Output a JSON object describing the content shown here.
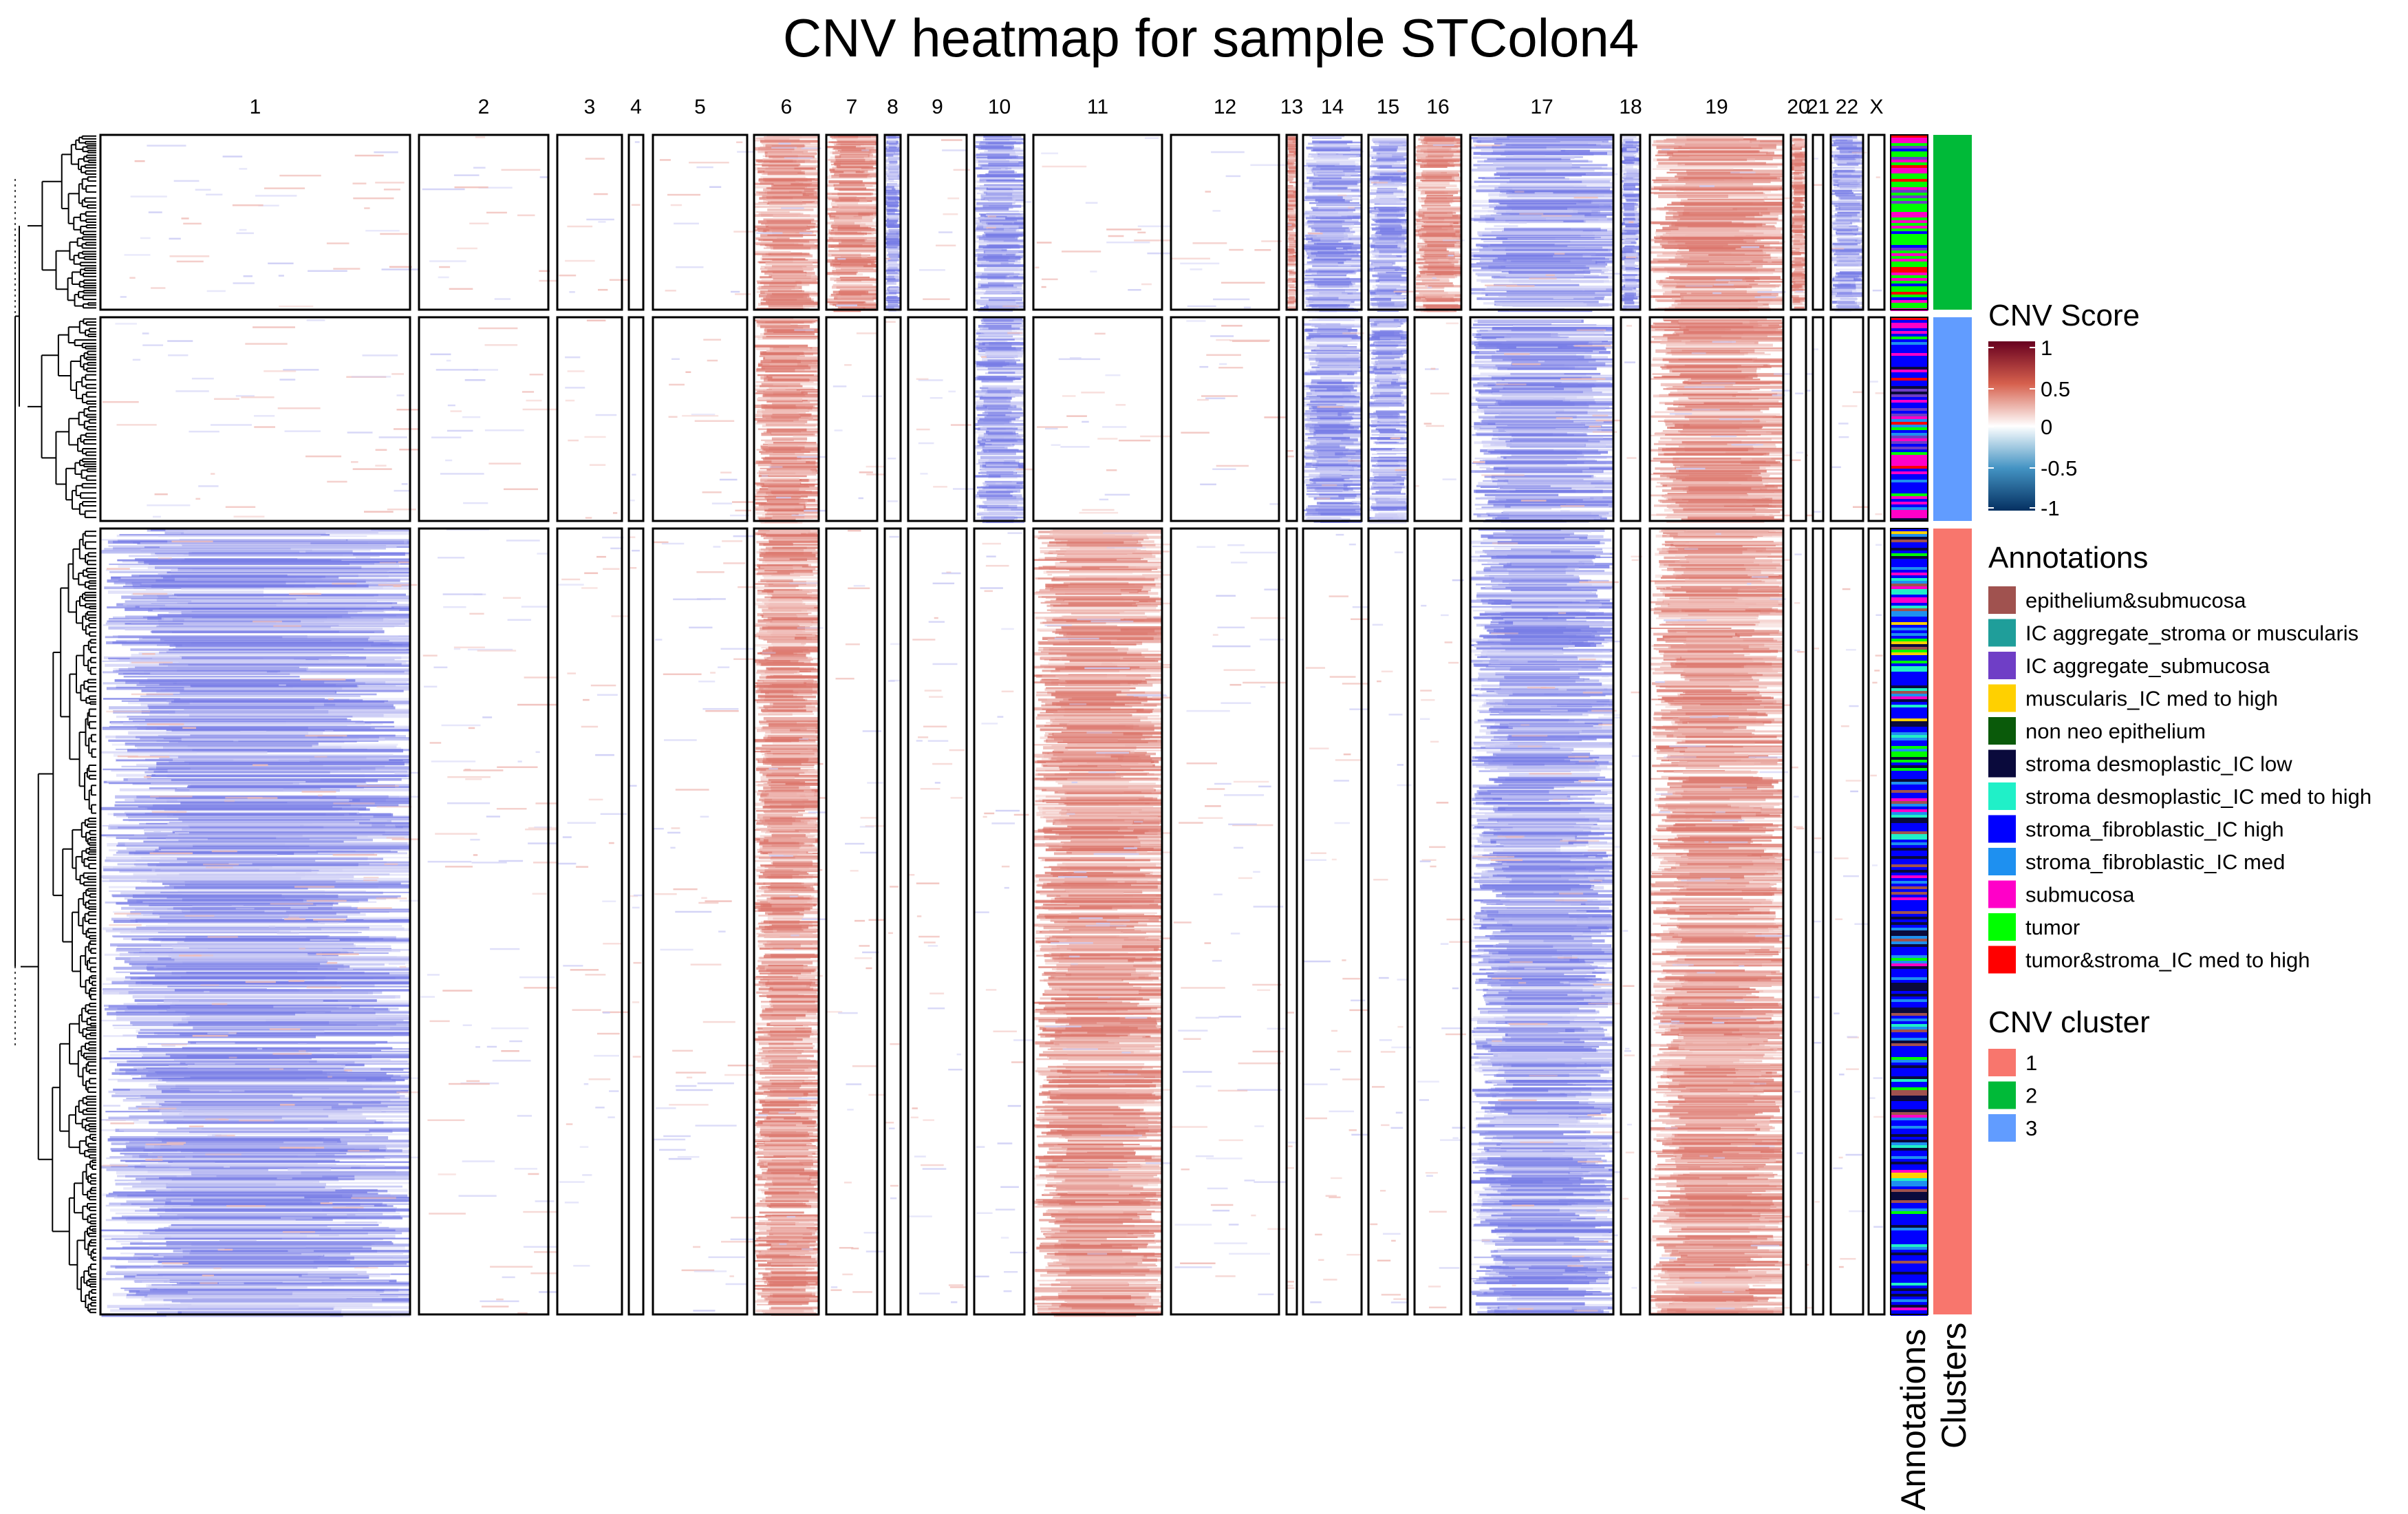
{
  "chart_data": {
    "type": "heatmap",
    "title": "CNV heatmap for sample STColon4",
    "chromosomes": [
      {
        "name": "1"
      },
      {
        "name": "2"
      },
      {
        "name": "3"
      },
      {
        "name": "4"
      },
      {
        "name": "5"
      },
      {
        "name": "6"
      },
      {
        "name": "7"
      },
      {
        "name": "8"
      },
      {
        "name": "9"
      },
      {
        "name": "10"
      },
      {
        "name": "11"
      },
      {
        "name": "12"
      },
      {
        "name": "13"
      },
      {
        "name": "14"
      },
      {
        "name": "15"
      },
      {
        "name": "16"
      },
      {
        "name": "17"
      },
      {
        "name": "18"
      },
      {
        "name": "19"
      },
      {
        "name": "20"
      },
      {
        "name": "21"
      },
      {
        "name": "22"
      },
      {
        "name": "X"
      }
    ],
    "row_groups": [
      {
        "cluster": "2",
        "color": "#00BA38",
        "gains": [
          "6",
          "7",
          "13",
          "16",
          "19",
          "20"
        ],
        "losses": [
          "8",
          "10",
          "14",
          "15",
          "17",
          "18",
          "22"
        ]
      },
      {
        "cluster": "3",
        "color": "#619CFF",
        "gains": [
          "6",
          "19"
        ],
        "losses": [
          "10",
          "14",
          "15",
          "17"
        ]
      },
      {
        "cluster": "1",
        "color": "#F8766D",
        "gains": [
          "6",
          "11",
          "19"
        ],
        "losses": [
          "1",
          "17"
        ]
      }
    ],
    "color_scale": {
      "title": "CNV Score",
      "ticks": [
        "1",
        "0.5",
        "0",
        "-0.5",
        "-1"
      ],
      "stops": [
        "#67001F",
        "#D6604D",
        "#FFFFFF",
        "#4393C3",
        "#053061"
      ],
      "range": [
        -1,
        1
      ]
    },
    "annotation_legend": {
      "title": "Annotations",
      "items": [
        {
          "label": "epithelium&submucosa",
          "color": "#A0524F"
        },
        {
          "label": "IC aggregate_stroma or muscularis",
          "color": "#1F9E9A"
        },
        {
          "label": "IC aggregate_submucosa",
          "color": "#6F3EC6"
        },
        {
          "label": "muscularis_IC med to high",
          "color": "#FFD000"
        },
        {
          "label": "non neo epithelium",
          "color": "#0A5A0A"
        },
        {
          "label": "stroma desmoplastic_IC low",
          "color": "#0A0A3C"
        },
        {
          "label": "stroma desmoplastic_IC med to high",
          "color": "#20F0C8"
        },
        {
          "label": "stroma_fibroblastic_IC high",
          "color": "#0000FF"
        },
        {
          "label": "stroma_fibroblastic_IC med",
          "color": "#1E90F0"
        },
        {
          "label": "submucosa",
          "color": "#FF00C8"
        },
        {
          "label": "tumor",
          "color": "#00FF00"
        },
        {
          "label": "tumor&stroma_IC med to high",
          "color": "#FF0000"
        }
      ]
    },
    "cluster_legend": {
      "title": "CNV cluster",
      "items": [
        {
          "label": "1",
          "color": "#F8766D"
        },
        {
          "label": "2",
          "color": "#00BA38"
        },
        {
          "label": "3",
          "color": "#619CFF"
        }
      ]
    },
    "side_labels": {
      "annotations": "Annotations",
      "clusters": "Clusters"
    },
    "dendrogram": "left",
    "grid": false
  }
}
